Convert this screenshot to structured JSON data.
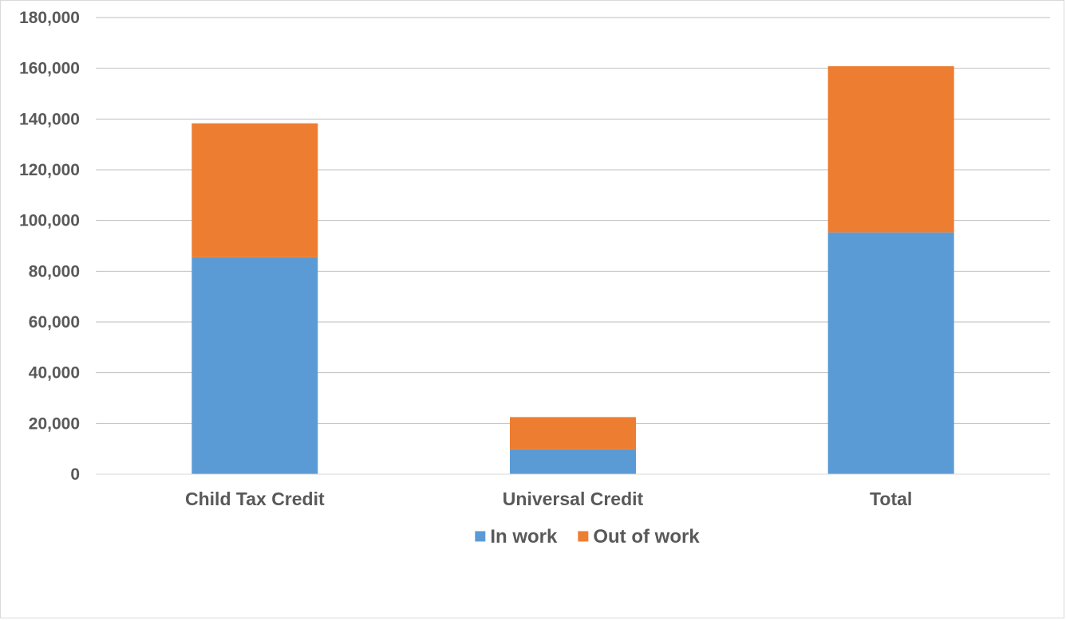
{
  "chart_data": {
    "type": "bar",
    "stacked": true,
    "categories": [
      "Child Tax Credit",
      "Universal Credit",
      "Total"
    ],
    "series": [
      {
        "name": "In work",
        "color": "#5b9bd5",
        "values": [
          85500,
          9800,
          95300
        ]
      },
      {
        "name": "Out of work",
        "color": "#ed7d31",
        "values": [
          52800,
          12700,
          65500
        ]
      }
    ],
    "ylim": [
      0,
      180000
    ],
    "yticks": [
      0,
      20000,
      40000,
      60000,
      80000,
      100000,
      120000,
      140000,
      160000,
      180000
    ],
    "grid": true,
    "legend": "bottom"
  }
}
